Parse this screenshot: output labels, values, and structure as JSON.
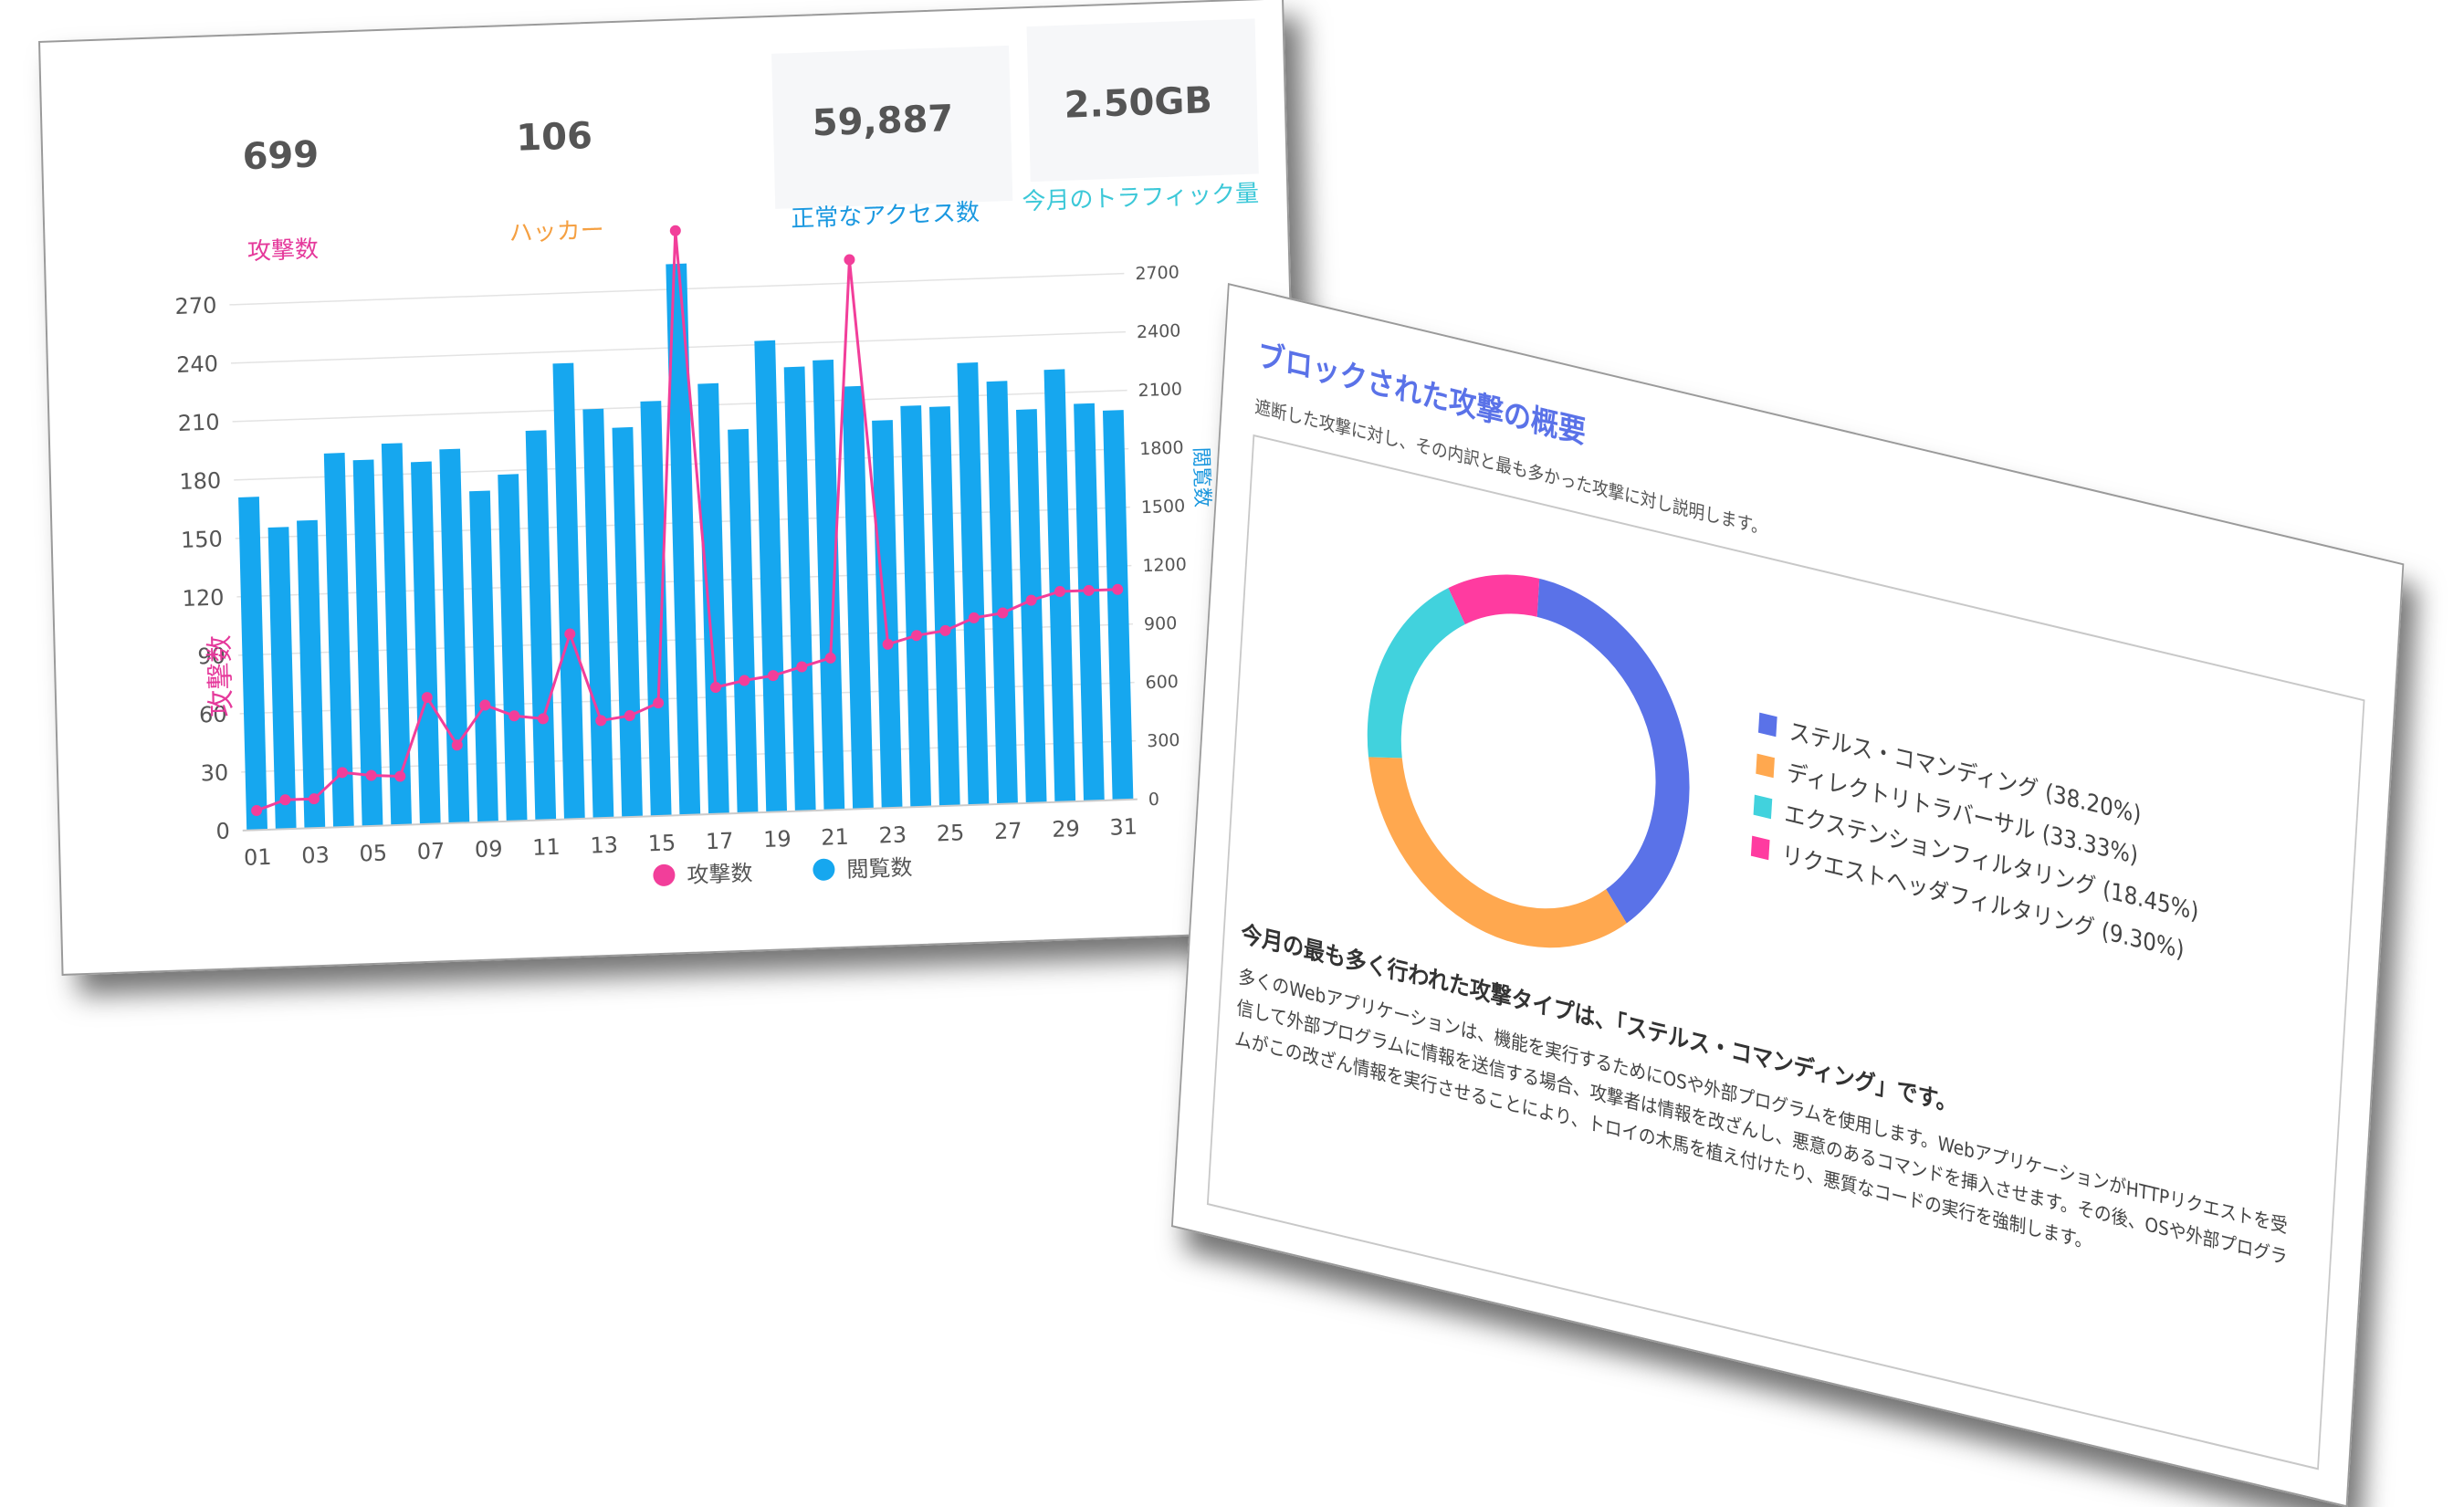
{
  "stats": [
    {
      "value": "699",
      "label": "攻撃数",
      "color": "#e5399b"
    },
    {
      "value": "106",
      "label": "ハッカー",
      "color": "#f5a042"
    },
    {
      "value": "59,887",
      "label": "正常なアクセス数",
      "color": "#1a98e0"
    },
    {
      "value": "2.50GB",
      "label": "今月のトラフィック量",
      "color": "#3cc8d8"
    }
  ],
  "chart_data": [
    {
      "type": "bar",
      "x": [
        "01",
        "02",
        "03",
        "04",
        "05",
        "06",
        "07",
        "08",
        "09",
        "10",
        "11",
        "12",
        "13",
        "14",
        "15",
        "16",
        "17",
        "18",
        "19",
        "20",
        "21",
        "22",
        "23",
        "24",
        "25",
        "26",
        "27",
        "28",
        "29",
        "30",
        "31"
      ],
      "x_tick_labels": [
        "01",
        "03",
        "05",
        "07",
        "09",
        "11",
        "13",
        "15",
        "17",
        "19",
        "21",
        "23",
        "25",
        "27",
        "29",
        "31"
      ],
      "series": [
        {
          "name": "攻撃数",
          "type": "line",
          "axis": "left",
          "color": "#f23e9a",
          "values": [
            10,
            15,
            15,
            28,
            26,
            25,
            65,
            40,
            60,
            54,
            52,
            95,
            50,
            52,
            58,
            300,
            65,
            68,
            70,
            74,
            78,
            282,
            84,
            88,
            90,
            96,
            98,
            104,
            108,
            108,
            108
          ]
        },
        {
          "name": "閲覧数",
          "type": "bar",
          "axis": "right",
          "color": "#16a7ef",
          "values": [
            1710,
            1550,
            1580,
            1920,
            1880,
            1960,
            1860,
            1920,
            1700,
            1780,
            2000,
            2340,
            2100,
            2000,
            2130,
            2830,
            2210,
            1970,
            2420,
            2280,
            2310,
            2170,
            1990,
            2060,
            2050,
            2270,
            2170,
            2020,
            2220,
            2040,
            2000
          ]
        }
      ],
      "y_left": {
        "label": "攻撃数",
        "ticks": [
          0,
          30,
          60,
          90,
          120,
          150,
          180,
          210,
          240,
          270
        ],
        "range": [
          0,
          300
        ]
      },
      "y_right": {
        "label": "閲覧数",
        "ticks": [
          0,
          300,
          600,
          900,
          1200,
          1500,
          1800,
          2100,
          2400,
          2700
        ],
        "range": [
          0,
          3000
        ]
      },
      "legend": [
        "攻撃数",
        "閲覧数"
      ],
      "legend_position": "bottom",
      "grid": true
    },
    {
      "type": "pie",
      "variant": "donut",
      "labels": [
        "ステルス・コマンディング",
        "ディレクトリトラバーサル",
        "エクステンションフィルタリング",
        "リクエストヘッダフィルタリング"
      ],
      "values": [
        38.2,
        33.33,
        18.45,
        9.3
      ],
      "colors": [
        "#5a72e8",
        "#ffa84f",
        "#41d2dd",
        "#ff3ba0"
      ],
      "legend_position": "right"
    }
  ],
  "summary": {
    "title": "ブロックされた攻撃の概要",
    "description": "遮断した攻撃に対し、その内訳と最も多かった攻撃に対し説明します。",
    "legend_labels": [
      "ステルス・コマンディング (38.20%)",
      "ディレクトリトラバーサル (33.33%)",
      "エクステンションフィルタリング (18.45%)",
      "リクエストヘッダフィルタリング (9.30%)"
    ],
    "conclusion": "今月の最も多く行われた攻撃タイプは、「ステルス・コマンディング」です。",
    "body": "多くのWebアプリケーションは、機能を実行するためにOSや外部プログラムを使用します。WebアプリケーションがHTTPリクエストを受信して外部プログラムに情報を送信する場合、攻撃者は情報を改ざんし、悪意のあるコマンドを挿入させます。その後、OSや外部プログラムがこの改ざん情報を実行させることにより、トロイの木馬を植え付けたり、悪質なコードの実行を強制します。"
  }
}
